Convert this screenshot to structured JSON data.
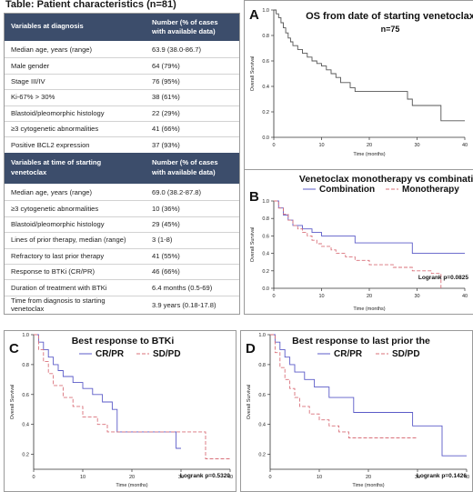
{
  "table": {
    "title": "Table: Patient characteristics (n=81)",
    "section1": {
      "header": [
        "Variables at diagnosis",
        "Number (% of cases",
        "with available data)"
      ],
      "rows": [
        [
          "Median age, years (range)",
          "63.9 (38.0-86.7)"
        ],
        [
          "Male gender",
          "64 (79%)"
        ],
        [
          "Stage III/IV",
          "76 (95%)"
        ],
        [
          "Ki-67% > 30%",
          "38 (61%)"
        ],
        [
          "Blastoid/pleomorphic histology",
          "22 (29%)"
        ],
        [
          "≥3 cytogenetic abnormalities",
          "41 (66%)"
        ],
        [
          "Positive BCL2 expression",
          "37 (93%)"
        ]
      ]
    },
    "section2": {
      "header": [
        "Variables at time of starting",
        "venetoclax",
        "Number (% of cases",
        "with available data)"
      ],
      "rows": [
        [
          "Median age, years (range)",
          "69.0 (38.2-87.8)"
        ],
        [
          "≥3 cytogenetic abnormalities",
          "10 (36%)"
        ],
        [
          "Blastoid/pleomorphic histology",
          "29 (45%)"
        ],
        [
          "Lines of prior therapy, median (range)",
          "3 (1-8)"
        ],
        [
          "Refractory to last prior therapy",
          "41 (55%)"
        ],
        [
          "Response to BTKi (CR/PR)",
          "46 (66%)"
        ],
        [
          "Duration of treatment with BTKi",
          "6.4 months (0.5-69)"
        ],
        [
          "Time from diagnosis to starting",
          "venetoclax",
          "3.9 years (0.18-17.8)"
        ]
      ]
    }
  },
  "chart_data": [
    {
      "type": "line",
      "letter": "A",
      "title": "OS from date of starting venetoclax",
      "subtitle": "n=75",
      "xlabel": "Time (months)",
      "ylabel": "Overall Survival",
      "xlim": [
        0,
        40
      ],
      "ylim": [
        0,
        1.0
      ],
      "xticks": [
        "0",
        "10",
        "20",
        "30",
        "40"
      ],
      "yticks": [
        "0.0",
        "0.2",
        "0.4",
        "0.6",
        "0.8",
        "1.0"
      ],
      "logrank": "",
      "colors": [
        "#555555"
      ],
      "series": [
        {
          "name": "",
          "x": [
            0,
            0.5,
            1,
            1.5,
            2,
            2.5,
            3,
            3.5,
            4,
            5,
            6,
            7,
            8,
            9,
            10,
            11,
            12,
            13,
            14,
            16,
            17,
            22,
            28,
            29,
            35,
            40
          ],
          "y": [
            1.0,
            0.97,
            0.94,
            0.9,
            0.86,
            0.82,
            0.78,
            0.75,
            0.72,
            0.69,
            0.66,
            0.63,
            0.6,
            0.58,
            0.56,
            0.53,
            0.5,
            0.47,
            0.43,
            0.39,
            0.36,
            0.36,
            0.3,
            0.25,
            0.13,
            0.13
          ]
        }
      ]
    },
    {
      "type": "line",
      "letter": "B",
      "title": "Venetoclax monotherapy vs combination",
      "subtitle": "",
      "xlabel": "Time (months)",
      "ylabel": "Overall Survival",
      "xlim": [
        0,
        40
      ],
      "ylim": [
        0,
        1.0
      ],
      "xticks": [
        "0",
        "10",
        "20",
        "30",
        "40"
      ],
      "yticks": [
        "0.0",
        "0.2",
        "0.4",
        "0.6",
        "0.8",
        "1.0"
      ],
      "logrank": "Logrank p=0.0825",
      "colors": [
        "#5b5bc8",
        "#d9707a"
      ],
      "series": [
        {
          "name": "Combination",
          "x": [
            0,
            1,
            2,
            3,
            4,
            6,
            8,
            10,
            17,
            29,
            40
          ],
          "y": [
            1.0,
            0.92,
            0.84,
            0.78,
            0.72,
            0.68,
            0.64,
            0.6,
            0.52,
            0.4,
            0.4
          ]
        },
        {
          "name": "Monotherapy",
          "x": [
            0,
            1,
            2,
            3,
            4,
            5,
            6,
            7,
            8,
            9,
            10,
            12,
            13,
            15,
            17,
            20,
            25,
            29,
            33,
            35
          ],
          "y": [
            1.0,
            0.92,
            0.85,
            0.78,
            0.72,
            0.68,
            0.64,
            0.6,
            0.55,
            0.51,
            0.48,
            0.44,
            0.4,
            0.36,
            0.32,
            0.27,
            0.24,
            0.2,
            0.17,
            0.0
          ]
        }
      ]
    },
    {
      "type": "line",
      "letter": "C",
      "title": "Best response to BTKi",
      "subtitle": "",
      "xlabel": "Time (months)",
      "ylabel": "Overall Survival",
      "xlim": [
        0,
        40
      ],
      "ylim": [
        0.1,
        1.0
      ],
      "xticks": [
        "0",
        "10",
        "20",
        "30",
        "40"
      ],
      "yticks": [
        "0.2",
        "0.4",
        "0.6",
        "0.8",
        "1.0"
      ],
      "logrank": "Logrank p=0.5320",
      "colors": [
        "#5b5bc8",
        "#d9707a"
      ],
      "series": [
        {
          "name": "CR/PR",
          "x": [
            0,
            1,
            2,
            3,
            4,
            5,
            6,
            8,
            10,
            12,
            14,
            16,
            17,
            28,
            29,
            30
          ],
          "y": [
            1.0,
            0.95,
            0.9,
            0.85,
            0.8,
            0.76,
            0.72,
            0.68,
            0.64,
            0.6,
            0.55,
            0.5,
            0.35,
            0.35,
            0.24,
            0.24
          ]
        },
        {
          "name": "SD/PD",
          "x": [
            0,
            1,
            2,
            3,
            4,
            6,
            8,
            10,
            13,
            15,
            29,
            35,
            40
          ],
          "y": [
            1.0,
            0.9,
            0.82,
            0.74,
            0.66,
            0.58,
            0.52,
            0.45,
            0.4,
            0.35,
            0.35,
            0.17,
            0.17
          ]
        }
      ]
    },
    {
      "type": "line",
      "letter": "D",
      "title": "Best response to last prior the",
      "subtitle": "",
      "xlabel": "Time (months)",
      "ylabel": "Overall Survival",
      "xlim": [
        0,
        40
      ],
      "ylim": [
        0.1,
        1.0
      ],
      "xticks": [
        "0",
        "10",
        "20",
        "30",
        "40"
      ],
      "yticks": [
        "0.2",
        "0.4",
        "0.6",
        "0.8",
        "1.0"
      ],
      "logrank": "Logrank p=0.1426",
      "colors": [
        "#5b5bc8",
        "#d9707a"
      ],
      "series": [
        {
          "name": "CR/PR",
          "x": [
            0,
            1,
            2,
            3,
            4,
            5,
            7,
            9,
            12,
            17,
            29,
            35,
            40
          ],
          "y": [
            1.0,
            0.95,
            0.9,
            0.85,
            0.8,
            0.75,
            0.7,
            0.65,
            0.58,
            0.48,
            0.39,
            0.19,
            0.19
          ]
        },
        {
          "name": "SD/PD",
          "x": [
            0,
            1,
            2,
            3,
            4,
            5,
            6,
            8,
            10,
            12,
            14,
            16,
            30
          ],
          "y": [
            1.0,
            0.88,
            0.78,
            0.7,
            0.64,
            0.58,
            0.52,
            0.47,
            0.43,
            0.39,
            0.35,
            0.31,
            0.31
          ]
        }
      ]
    }
  ]
}
